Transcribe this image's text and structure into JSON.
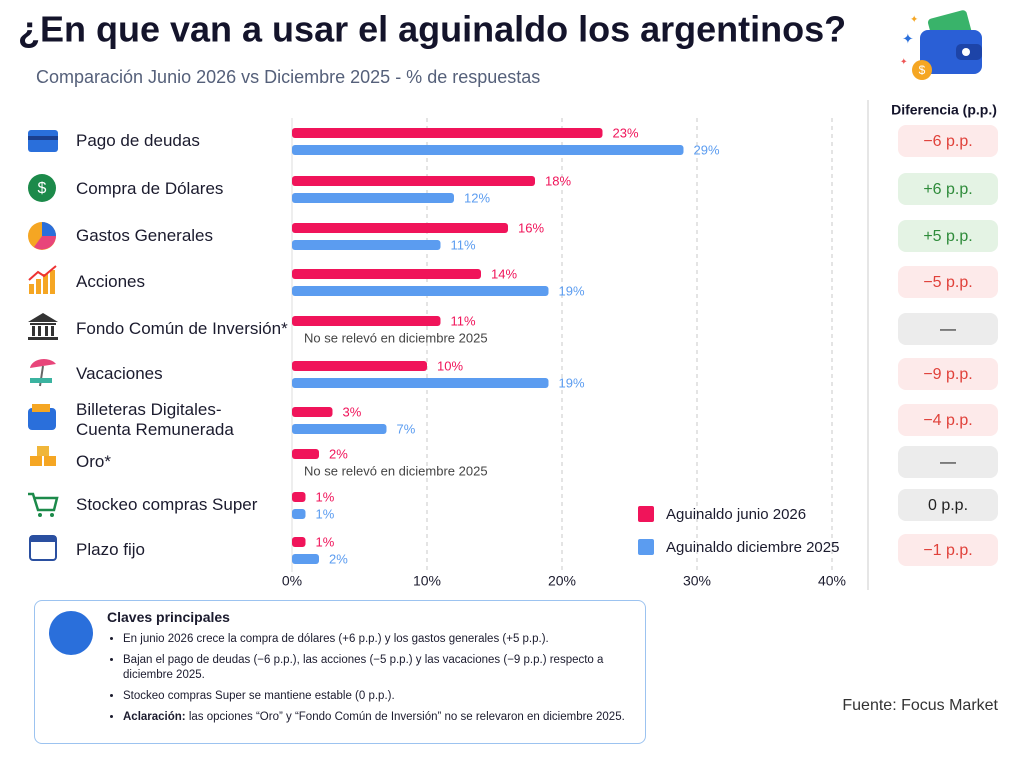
{
  "chart_data": {
    "type": "bar",
    "orientation": "horizontal",
    "title": "¿En que van a usar el aguinaldo los argentinos?",
    "subtitle": "Comparación Junio 2026 vs Diciembre 2025 - % de respuestas",
    "categories": [
      "Pago de deudas",
      "Compra de Dólares",
      "Gastos Generales",
      "Acciones",
      "Fondo Común de Inversión*",
      "Vacaciones",
      "Billeteras Digitales-\nCuenta Remunerada",
      "Oro*",
      "Stockeo compras Super",
      "Plazo fijo"
    ],
    "series": [
      {
        "name": "Aguinaldo junio 2026",
        "color": "#f0145a",
        "values": [
          23,
          18,
          16,
          14,
          11,
          10,
          3,
          2,
          1,
          1
        ],
        "value_labels": [
          "23%",
          "18%",
          "16%",
          "14%",
          "11%",
          "10%",
          "3%",
          "2%",
          "1%",
          "1%"
        ]
      },
      {
        "name": "Aguinaldo diciembre 2025",
        "color": "#5b9cf0",
        "values": [
          29,
          12,
          11,
          19,
          null,
          19,
          7,
          null,
          1,
          2
        ],
        "value_labels": [
          "29%",
          "12%",
          "11%",
          "19%",
          "No se relevó en diciembre 2025",
          "19%",
          "7%",
          "No se relevó en diciembre 2025",
          "1%",
          "2%"
        ]
      }
    ],
    "xlim": [
      0,
      40
    ],
    "xticks": [
      {
        "value": 0,
        "label": "0%"
      },
      {
        "value": 10,
        "label": "10%"
      },
      {
        "value": 20,
        "label": "20%"
      },
      {
        "value": 30,
        "label": "30%"
      },
      {
        "value": 40,
        "label": "40%"
      }
    ],
    "grid": true,
    "legend": "lower right",
    "difference": {
      "title": "Diferencia (p.p.)",
      "values": [
        -6,
        6,
        5,
        -5,
        null,
        -9,
        -4,
        null,
        0,
        -1
      ],
      "value_labels": [
        "−6 p.p.",
        "+6 p.p.",
        "+5 p.p.",
        "−5 p.p.",
        "—",
        "−9 p.p.",
        "−4 p.p.",
        "—",
        "0 p.p.",
        "−1 p.p."
      ]
    }
  },
  "key_points": {
    "title": "Claves principales",
    "items": [
      {
        "text": "En junio 2026 crece la compra de dólares (+6 p.p.) y los gastos generales (+5 p.p.)."
      },
      {
        "text": "Bajan el pago de deudas (−6 p.p.), las acciones (−5 p.p.) y las vacaciones (−9 p.p.) respecto a diciembre 2025."
      },
      {
        "text": "Stockeo compras Super se mantiene estable (0 p.p.)."
      },
      {
        "bold": "Aclaración:",
        "text": "las opciones “Oro” y “Fondo Común de Inversión” no se relevaron en diciembre 2025."
      }
    ]
  },
  "source": "Fuente: Focus Market"
}
